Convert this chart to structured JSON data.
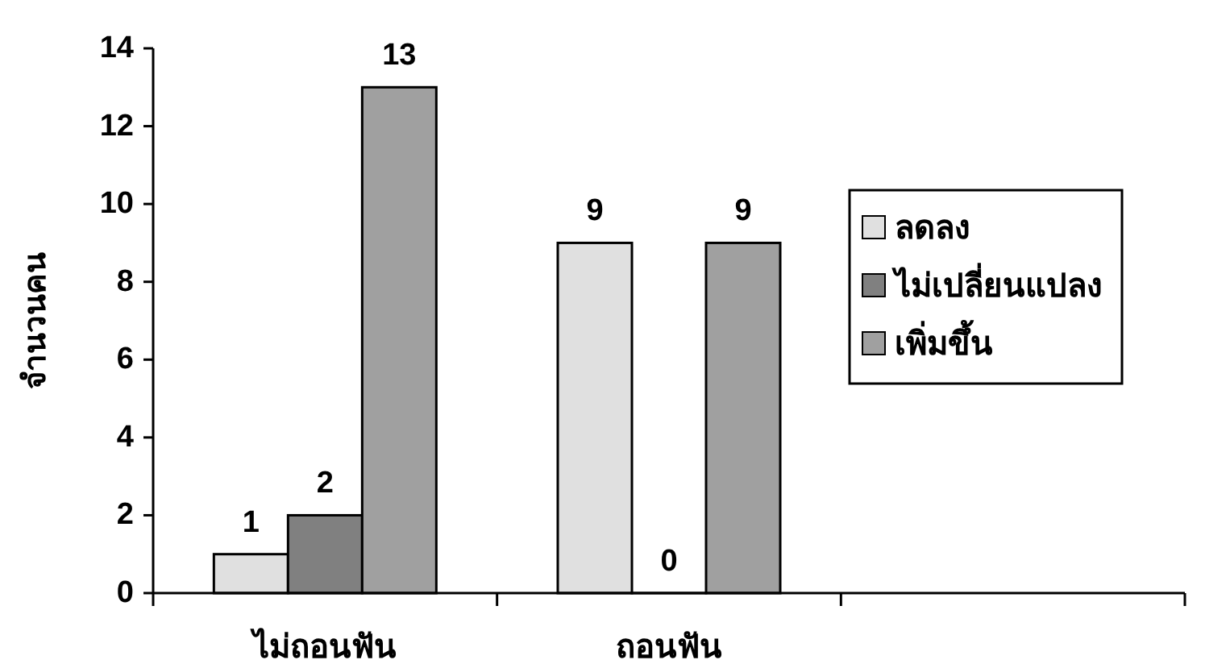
{
  "chart_data": {
    "type": "bar",
    "ylabel": "จำนวนคน",
    "categories": [
      "ไม่ถอนฟัน",
      "ถอนฟัน",
      null
    ],
    "series": [
      {
        "name": "ลดลง",
        "color": "#e0e0e0",
        "values": [
          1,
          9,
          null
        ]
      },
      {
        "name": "ไม่เปลี่ยนแปลง",
        "color": "#808080",
        "values": [
          2,
          0,
          null
        ]
      },
      {
        "name": "เพิ่มขึ้น",
        "color": "#a0a0a0",
        "values": [
          13,
          9,
          null
        ]
      }
    ],
    "ylim": [
      0,
      14
    ],
    "yticks": [
      0,
      2,
      4,
      6,
      8,
      10,
      12,
      14
    ],
    "data_labels": true,
    "legend": "right",
    "grid": false
  }
}
